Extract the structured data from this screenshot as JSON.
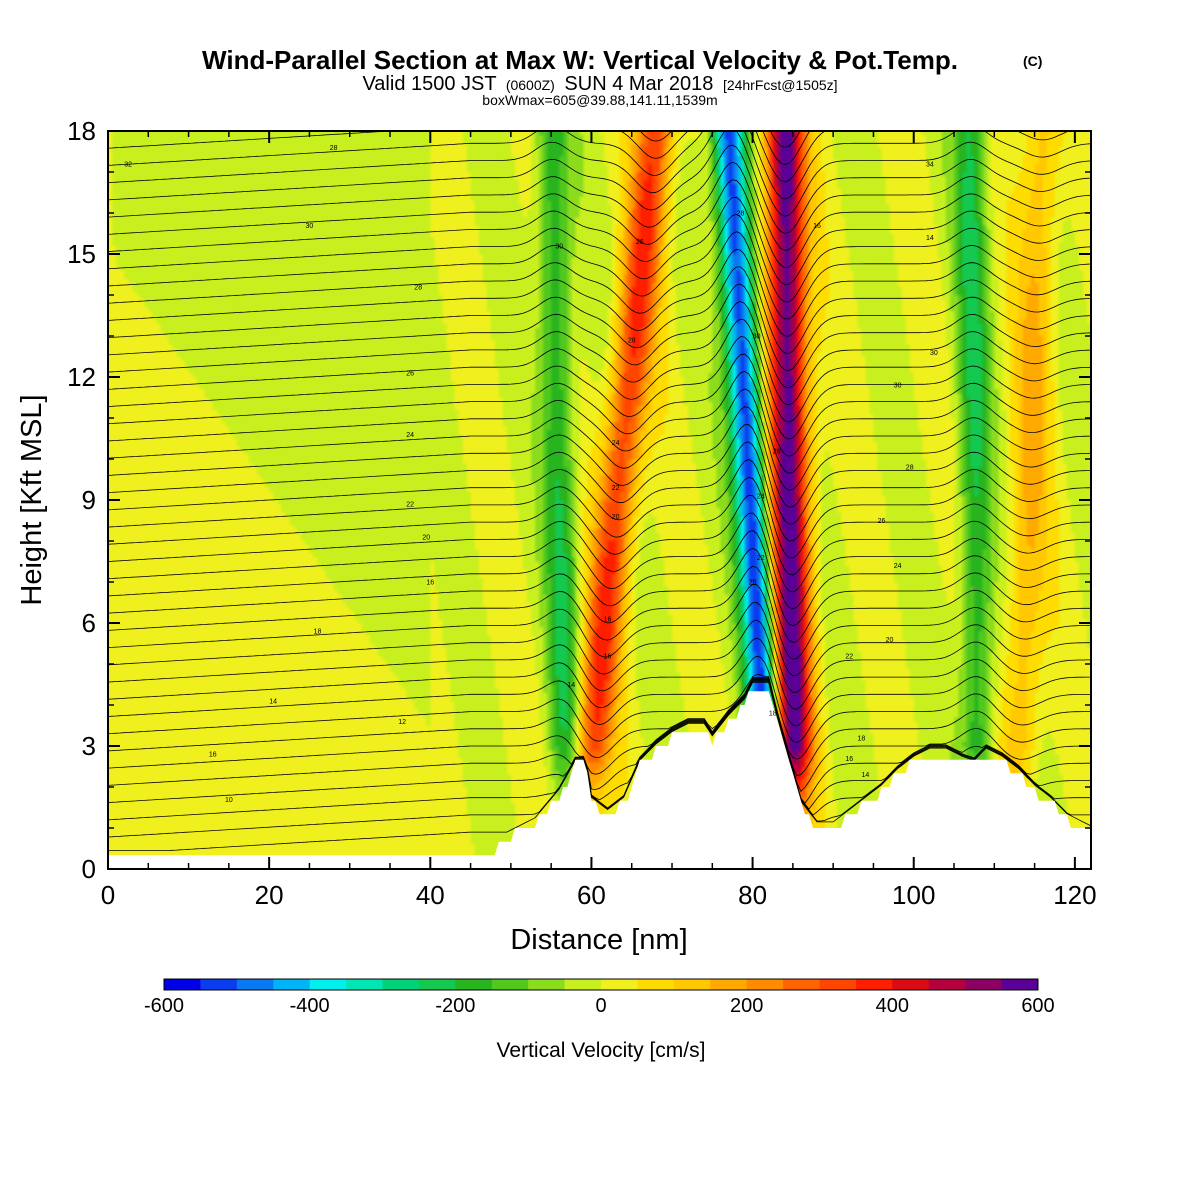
{
  "chart_data": {
    "type": "heatmap",
    "title": "Wind-Parallel Section at Max W: Vertical Velocity & Pot.Temp.",
    "title_mark": "(C)",
    "subtitle_parts": [
      "Valid 1500 JST",
      "(0600Z)",
      "SUN 4 Mar 2018",
      "[24hrFcst@1505z]"
    ],
    "box_info": "boxWmax=605@39.88,141.11,1539m",
    "xlabel": "Distance [nm]",
    "ylabel": "Height [Kft MSL]",
    "xlim": [
      0,
      122
    ],
    "ylim": [
      0,
      18
    ],
    "x_ticks": [
      0,
      20,
      40,
      60,
      80,
      100,
      120
    ],
    "y_ticks": [
      0,
      3,
      6,
      9,
      12,
      15,
      18
    ],
    "colorbar": {
      "label": "Vertical Velocity [cm/s]",
      "ticks": [
        -600,
        -400,
        -200,
        0,
        200,
        400,
        600
      ],
      "levels": [
        -600,
        -550,
        -500,
        -450,
        -400,
        -350,
        -300,
        -250,
        -200,
        -150,
        -100,
        -50,
        0,
        50,
        100,
        150,
        200,
        250,
        300,
        350,
        400,
        450,
        500,
        550,
        600
      ],
      "colors": [
        "#0000e6",
        "#0a3cf0",
        "#0a78f0",
        "#00b4f5",
        "#00f0f0",
        "#00e6b4",
        "#00d278",
        "#14c850",
        "#28b41e",
        "#50c81e",
        "#8cdc1e",
        "#c8f01e",
        "#f0f01e",
        "#ffdc00",
        "#ffc800",
        "#ffaa00",
        "#ff8c00",
        "#ff6400",
        "#ff4600",
        "#ff1e00",
        "#dc0a14",
        "#b4003c",
        "#8c0064",
        "#5a0096"
      ]
    },
    "updraft_bands": [
      {
        "x_bottom": 59.5,
        "x_top": 68,
        "peak_cm_s": 350
      },
      {
        "x_bottom": 85,
        "x_top": 84,
        "peak_cm_s": 605
      },
      {
        "x_bottom": 113,
        "x_top": 116,
        "peak_cm_s": 150
      }
    ],
    "downdraft_bands": [
      {
        "x_bottom": 57,
        "x_top": 55,
        "peak_cm_s": -200
      },
      {
        "x_bottom": 82,
        "x_top": 77,
        "peak_cm_s": -550
      },
      {
        "x_bottom": 108,
        "x_top": 107,
        "peak_cm_s": -200
      }
    ],
    "terrain_kft": {
      "x": [
        0,
        47,
        50,
        53,
        56,
        58,
        59.3,
        60,
        62,
        64,
        66,
        68,
        70,
        72,
        74,
        75,
        77,
        79,
        80,
        82,
        83,
        85,
        86,
        88,
        90,
        92,
        94,
        96,
        98,
        100,
        102,
        104,
        106,
        107.5,
        109,
        111,
        113,
        115,
        117,
        119,
        122
      ],
      "y": [
        0.3,
        0.3,
        0.8,
        1.1,
        1.8,
        2.5,
        2.5,
        1.6,
        1.3,
        1.6,
        2.5,
        2.9,
        3.2,
        3.4,
        3.4,
        3.1,
        3.6,
        4.0,
        4.4,
        4.4,
        3.6,
        2.2,
        1.5,
        1.0,
        1.0,
        1.3,
        1.6,
        1.9,
        2.3,
        2.6,
        2.8,
        2.8,
        2.6,
        2.5,
        2.8,
        2.6,
        2.3,
        1.9,
        1.6,
        1.2,
        0.9
      ]
    },
    "theta_contours_C": [
      10,
      12,
      14,
      16,
      18,
      20,
      22,
      24,
      26,
      28,
      30,
      32,
      34
    ],
    "contour_labels": [
      "32",
      "28",
      "30",
      "28",
      "26",
      "24",
      "22",
      "20",
      "16",
      "18",
      "14",
      "12",
      "16",
      "10",
      "28",
      "30",
      "26",
      "24",
      "22",
      "20",
      "16",
      "16",
      "14",
      "28",
      "30",
      "26",
      "24",
      "22",
      "20",
      "18",
      "16",
      "14",
      "34",
      "30",
      "30",
      "28",
      "26",
      "24",
      "22",
      "20",
      "18",
      "16",
      "14"
    ]
  }
}
